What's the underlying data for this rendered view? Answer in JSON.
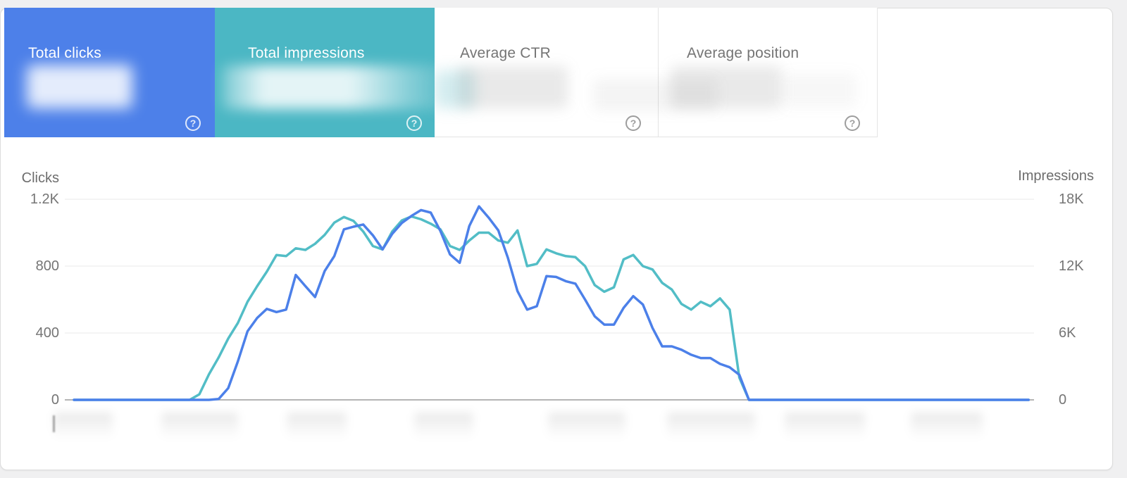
{
  "ui": {
    "help_glyph": "?"
  },
  "cards": [
    {
      "label": "Total clicks",
      "selected": true,
      "color": "#4d80e9",
      "text_color": "#ffffff",
      "value": "",
      "value_redacted": true
    },
    {
      "label": "Total impressions",
      "selected": true,
      "color": "#4bb7c4",
      "text_color": "#ffffff",
      "value": "",
      "value_redacted": true
    },
    {
      "label": "Average CTR",
      "selected": false,
      "color": "#ffffff",
      "text_color": "#757575",
      "value": "",
      "value_redacted": true
    },
    {
      "label": "Average position",
      "selected": false,
      "color": "#ffffff",
      "text_color": "#757575",
      "value": "",
      "value_redacted": true
    }
  ],
  "chart_data": {
    "type": "line",
    "title": "",
    "grid": true,
    "grid_color": "#e9e9e9",
    "axis_line_color": "#9b9b9b",
    "legend": "none",
    "n_points": 100,
    "left_axis": {
      "label": "Clicks",
      "ticks": [
        "1.2K",
        "800",
        "400",
        "0"
      ],
      "ylim": [
        0,
        1200
      ]
    },
    "right_axis": {
      "label": "Impressions",
      "ticks": [
        "18K",
        "12K",
        "6K",
        "0"
      ],
      "ylim": [
        0,
        18000
      ]
    },
    "x_axis": {
      "labels_redacted": true,
      "redacted_label_slots": 8
    },
    "series": [
      {
        "name": "Clicks",
        "axis": "left",
        "color": "#4c80e9",
        "values": [
          0,
          0,
          0,
          0,
          0,
          0,
          0,
          0,
          0,
          0,
          0,
          0,
          0,
          0,
          0,
          5,
          70,
          230,
          410,
          490,
          544,
          525,
          540,
          747,
          680,
          615,
          770,
          860,
          1020,
          1036,
          1049,
          984,
          900,
          993,
          1058,
          1100,
          1135,
          1120,
          1010,
          870,
          820,
          1040,
          1157,
          1090,
          1014,
          850,
          650,
          540,
          560,
          740,
          735,
          710,
          695,
          600,
          500,
          450,
          450,
          550,
          620,
          570,
          430,
          320,
          320,
          300,
          270,
          250,
          250,
          215,
          195,
          150,
          0,
          0,
          0,
          0,
          0,
          0,
          0,
          0,
          0,
          0,
          0,
          0,
          0,
          0,
          0,
          0,
          0,
          0,
          0,
          0,
          0,
          0,
          0,
          0,
          0,
          0,
          0,
          0,
          0,
          0
        ]
      },
      {
        "name": "Impressions",
        "axis": "right",
        "color": "#52bdc6",
        "values": [
          0,
          0,
          0,
          0,
          0,
          0,
          0,
          0,
          0,
          0,
          0,
          0,
          0,
          500,
          2300,
          3800,
          5500,
          6900,
          8800,
          10200,
          11500,
          13000,
          12900,
          13600,
          13450,
          14000,
          14800,
          15900,
          16400,
          16050,
          15100,
          13800,
          13500,
          15100,
          16100,
          16450,
          16200,
          15800,
          15300,
          13800,
          13450,
          14300,
          15000,
          15000,
          14300,
          14100,
          15200,
          12000,
          12200,
          13500,
          13150,
          12900,
          12800,
          12000,
          10300,
          9700,
          10100,
          12600,
          13000,
          12000,
          11700,
          10500,
          9900,
          8600,
          8100,
          8800,
          8400,
          9100,
          8100,
          2000,
          0,
          0,
          0,
          0,
          0,
          0,
          0,
          0,
          0,
          0,
          0,
          0,
          0,
          0,
          0,
          0,
          0,
          0,
          0,
          0,
          0,
          0,
          0,
          0,
          0,
          0,
          0,
          0,
          0,
          0
        ]
      }
    ]
  }
}
